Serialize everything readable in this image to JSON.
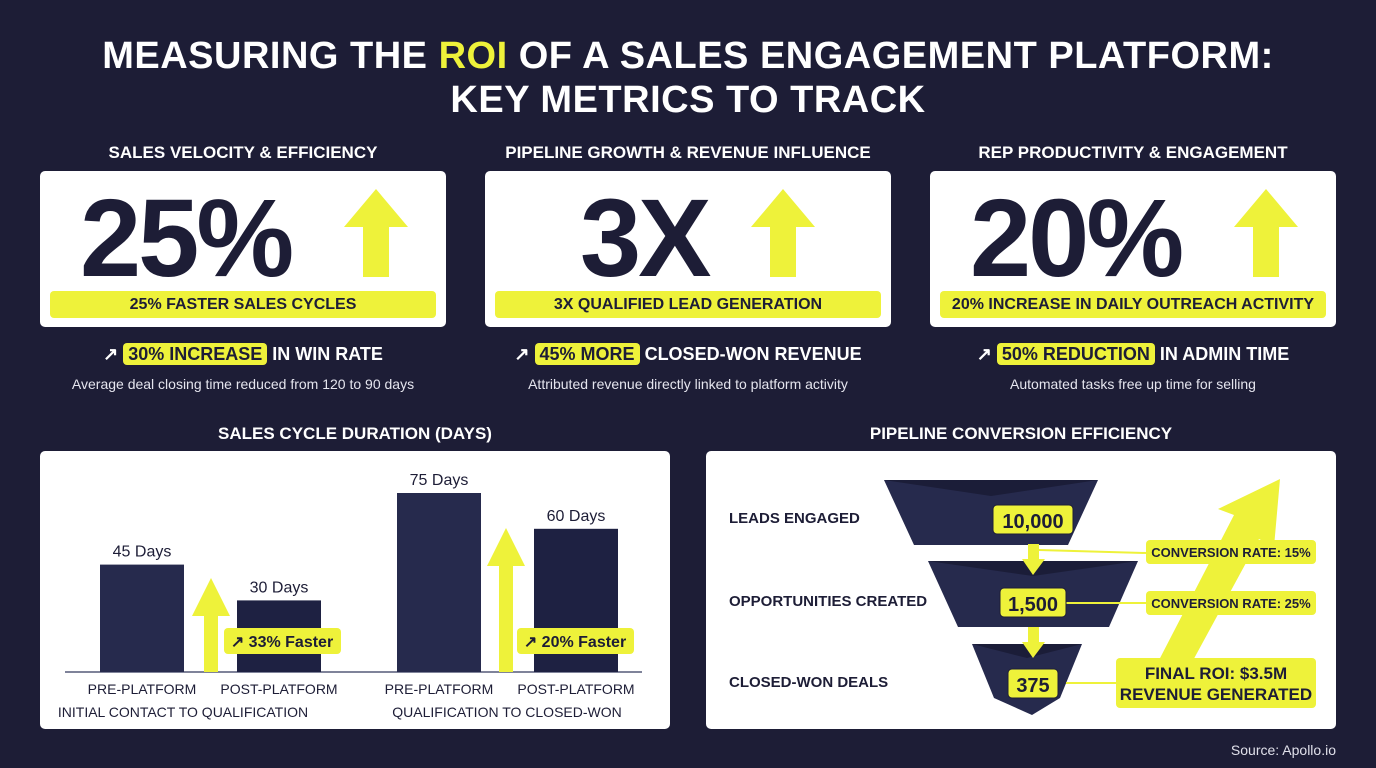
{
  "title": {
    "line1_pre": "MEASURING THE ",
    "line1_hl": "ROI",
    "line1_post": " OF A SALES ENGAGEMENT PLATFORM:",
    "line2": "KEY METRICS TO TRACK"
  },
  "colors": {
    "background": "#1d1d36",
    "accent": "#eef23a",
    "bar": "#262a4d",
    "text_dark": "#1d1d36"
  },
  "metrics": [
    {
      "section": "SALES VELOCITY & EFFICIENCY",
      "big": "25%",
      "icon": "arrow-up-icon",
      "label": "25% FASTER SALES CYCLES",
      "pill": "30% INCREASE",
      "sub": " IN WIN RATE",
      "desc": "Average deal closing time reduced from 120 to 90 days"
    },
    {
      "section": "PIPELINE GROWTH & REVENUE INFLUENCE",
      "big": "3X",
      "icon": "arrow-up-icon",
      "label": "3X QUALIFIED LEAD GENERATION",
      "pill": "45% MORE",
      "sub": " CLOSED-WON REVENUE",
      "desc": "Attributed revenue directly linked to platform activity"
    },
    {
      "section": "REP PRODUCTIVITY & ENGAGEMENT",
      "big": "20%",
      "icon": "arrow-up-icon",
      "label": "20% INCREASE IN DAILY OUTREACH ACTIVITY",
      "pill": "50% REDUCTION",
      "sub": " IN ADMIN TIME",
      "desc": "Automated tasks free up time for selling"
    }
  ],
  "trend_icon": "↗",
  "chart_data": [
    {
      "type": "bar",
      "title": "SALES CYCLE DURATION (DAYS)",
      "ylim": [
        0,
        80
      ],
      "grid": false,
      "groups": [
        {
          "name": "INITIAL CONTACT TO QUALIFICATION",
          "categories": [
            "PRE-PLATFORM",
            "POST-PLATFORM"
          ],
          "values": [
            45,
            30
          ],
          "labels": [
            "45 Days",
            "30 Days"
          ],
          "annotation": "↗ 33% Faster"
        },
        {
          "name": "QUALIFICATION TO CLOSED-WON",
          "categories": [
            "PRE-PLATFORM",
            "POST-PLATFORM"
          ],
          "values": [
            75,
            60
          ],
          "labels": [
            "75 Days",
            "60 Days"
          ],
          "annotation": "↗ 20% Faster"
        }
      ]
    },
    {
      "type": "funnel",
      "title": "PIPELINE CONVERSION EFFICIENCY",
      "stages": [
        {
          "name": "LEADS ENGAGED",
          "value": 10000,
          "label": "10,000"
        },
        {
          "name": "OPPORTUNITIES CREATED",
          "value": 1500,
          "label": "1,500"
        },
        {
          "name": "CLOSED-WON DEALS",
          "value": 375,
          "label": "375"
        }
      ],
      "conversions": [
        "CONVERSION RATE: 15%",
        "CONVERSION RATE: 25%"
      ],
      "final": [
        "FINAL ROI: $3.5M",
        "REVENUE GENERATED"
      ]
    }
  ],
  "source": "Source: Apollo.io"
}
